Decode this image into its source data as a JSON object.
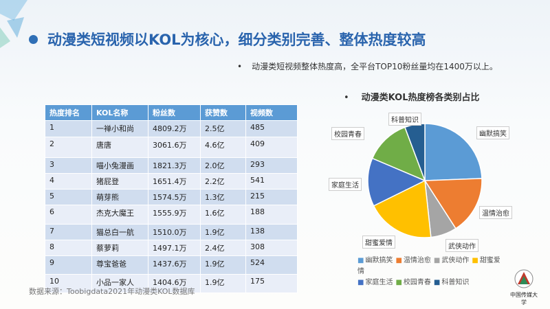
{
  "title": "动漫类短视频以KOL为核心，细分类别完善、整体热度较高",
  "subtitle": "动漫类短视频整体热度高，全平台TOP10粉丝量均在1400万以上。",
  "table": {
    "headers": [
      "热度排名",
      "KOL名称",
      "粉丝数",
      "获赞数",
      "视频数"
    ],
    "rows": [
      [
        "1",
        "一禅小和尚",
        "4809.2万",
        "2.5亿",
        "485"
      ],
      [
        "2",
        "唐唐",
        "3061.6万",
        "4.6亿",
        "409"
      ],
      [
        "3",
        "喵小兔漫画",
        "1821.3万",
        "2.0亿",
        "293"
      ],
      [
        "4",
        "猪屁登",
        "1651.4万",
        "2.2亿",
        "541"
      ],
      [
        "5",
        "萌芽熊",
        "1574.5万",
        "1.3亿",
        "215"
      ],
      [
        "6",
        "杰克大魔王",
        "1555.9万",
        "1.6亿",
        "188"
      ],
      [
        "7",
        "猫总白一航",
        "1510.0万",
        "1.9亿",
        "138"
      ],
      [
        "8",
        "蔡萝莉",
        "1497.1万",
        "2.4亿",
        "308"
      ],
      [
        "9",
        "尊宝爸爸",
        "1437.6万",
        "1.9亿",
        "524"
      ],
      [
        "10",
        "小品一家人",
        "1404.6万",
        "1.9亿",
        "175"
      ]
    ]
  },
  "source": "数据来源：Toobigdata2021年动漫类KOL数据库",
  "logo_text": "中国传媒大学",
  "chart_data": {
    "type": "pie",
    "title": "动漫类KOL热度榜各类别占比",
    "legend": "bottom",
    "categories": [
      "幽默搞笑",
      "温情治愈",
      "武侠动作",
      "甜蜜爱情",
      "家庭生活",
      "校园青春",
      "科普知识"
    ],
    "values": [
      24.4,
      16.5,
      7.4,
      19.4,
      13.7,
      12.9,
      5.7
    ],
    "colors": [
      "#5b9bd5",
      "#ed7d31",
      "#a5a5a5",
      "#ffc000",
      "#4472c4",
      "#70ad47",
      "#255e91"
    ]
  }
}
